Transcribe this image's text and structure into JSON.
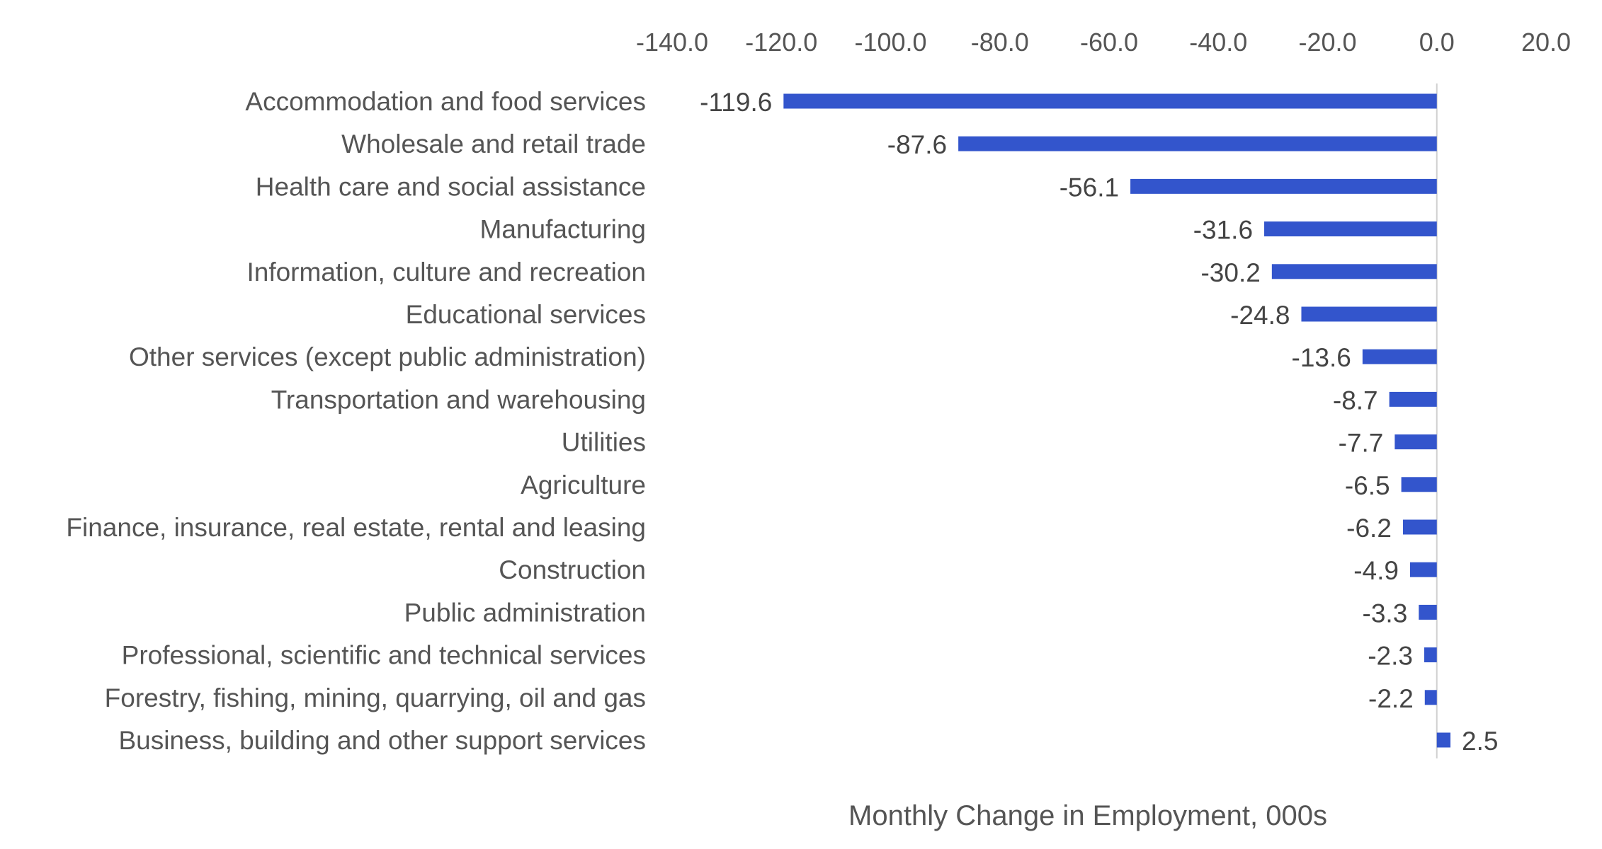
{
  "chart_data": {
    "type": "bar",
    "orientation": "horizontal",
    "categories": [
      "Accommodation and food services",
      "Wholesale and retail trade",
      "Health care and social assistance",
      "Manufacturing",
      "Information, culture and recreation",
      "Educational services",
      "Other services (except public administration)",
      "Transportation and warehousing",
      "Utilities",
      "Agriculture",
      "Finance, insurance, real estate, rental and leasing",
      "Construction",
      "Public administration",
      "Professional, scientific and technical services",
      "Forestry, fishing, mining, quarrying, oil and gas",
      "Business, building and other support services"
    ],
    "values": [
      -119.6,
      -87.6,
      -56.1,
      -31.6,
      -30.2,
      -24.8,
      -13.6,
      -8.7,
      -7.7,
      -6.5,
      -6.2,
      -4.9,
      -3.3,
      -2.3,
      -2.2,
      2.5
    ],
    "data_labels": [
      "-119.6",
      "-87.6",
      "-56.1",
      "-31.6",
      "-30.2",
      "-24.8",
      "-13.6",
      "-8.7",
      "-7.7",
      "-6.5",
      "-6.2",
      "-4.9",
      "-3.3",
      "-2.3",
      "-2.2",
      "2.5"
    ],
    "xlim": [
      -140,
      20
    ],
    "tick_values": [
      -140,
      -120,
      -100,
      -80,
      -60,
      -40,
      -20,
      0,
      20
    ],
    "tick_labels": [
      "-140.0",
      "-120.0",
      "-100.0",
      "-80.0",
      "-60.0",
      "-40.0",
      "-20.0",
      "0.0",
      "20.0"
    ],
    "xaxis_position": "top",
    "xlabel": "Monthly Change in Employment, 000s",
    "grid": false,
    "bar_color": "#3355CC",
    "zero_line_color": "#D0D0D0"
  }
}
